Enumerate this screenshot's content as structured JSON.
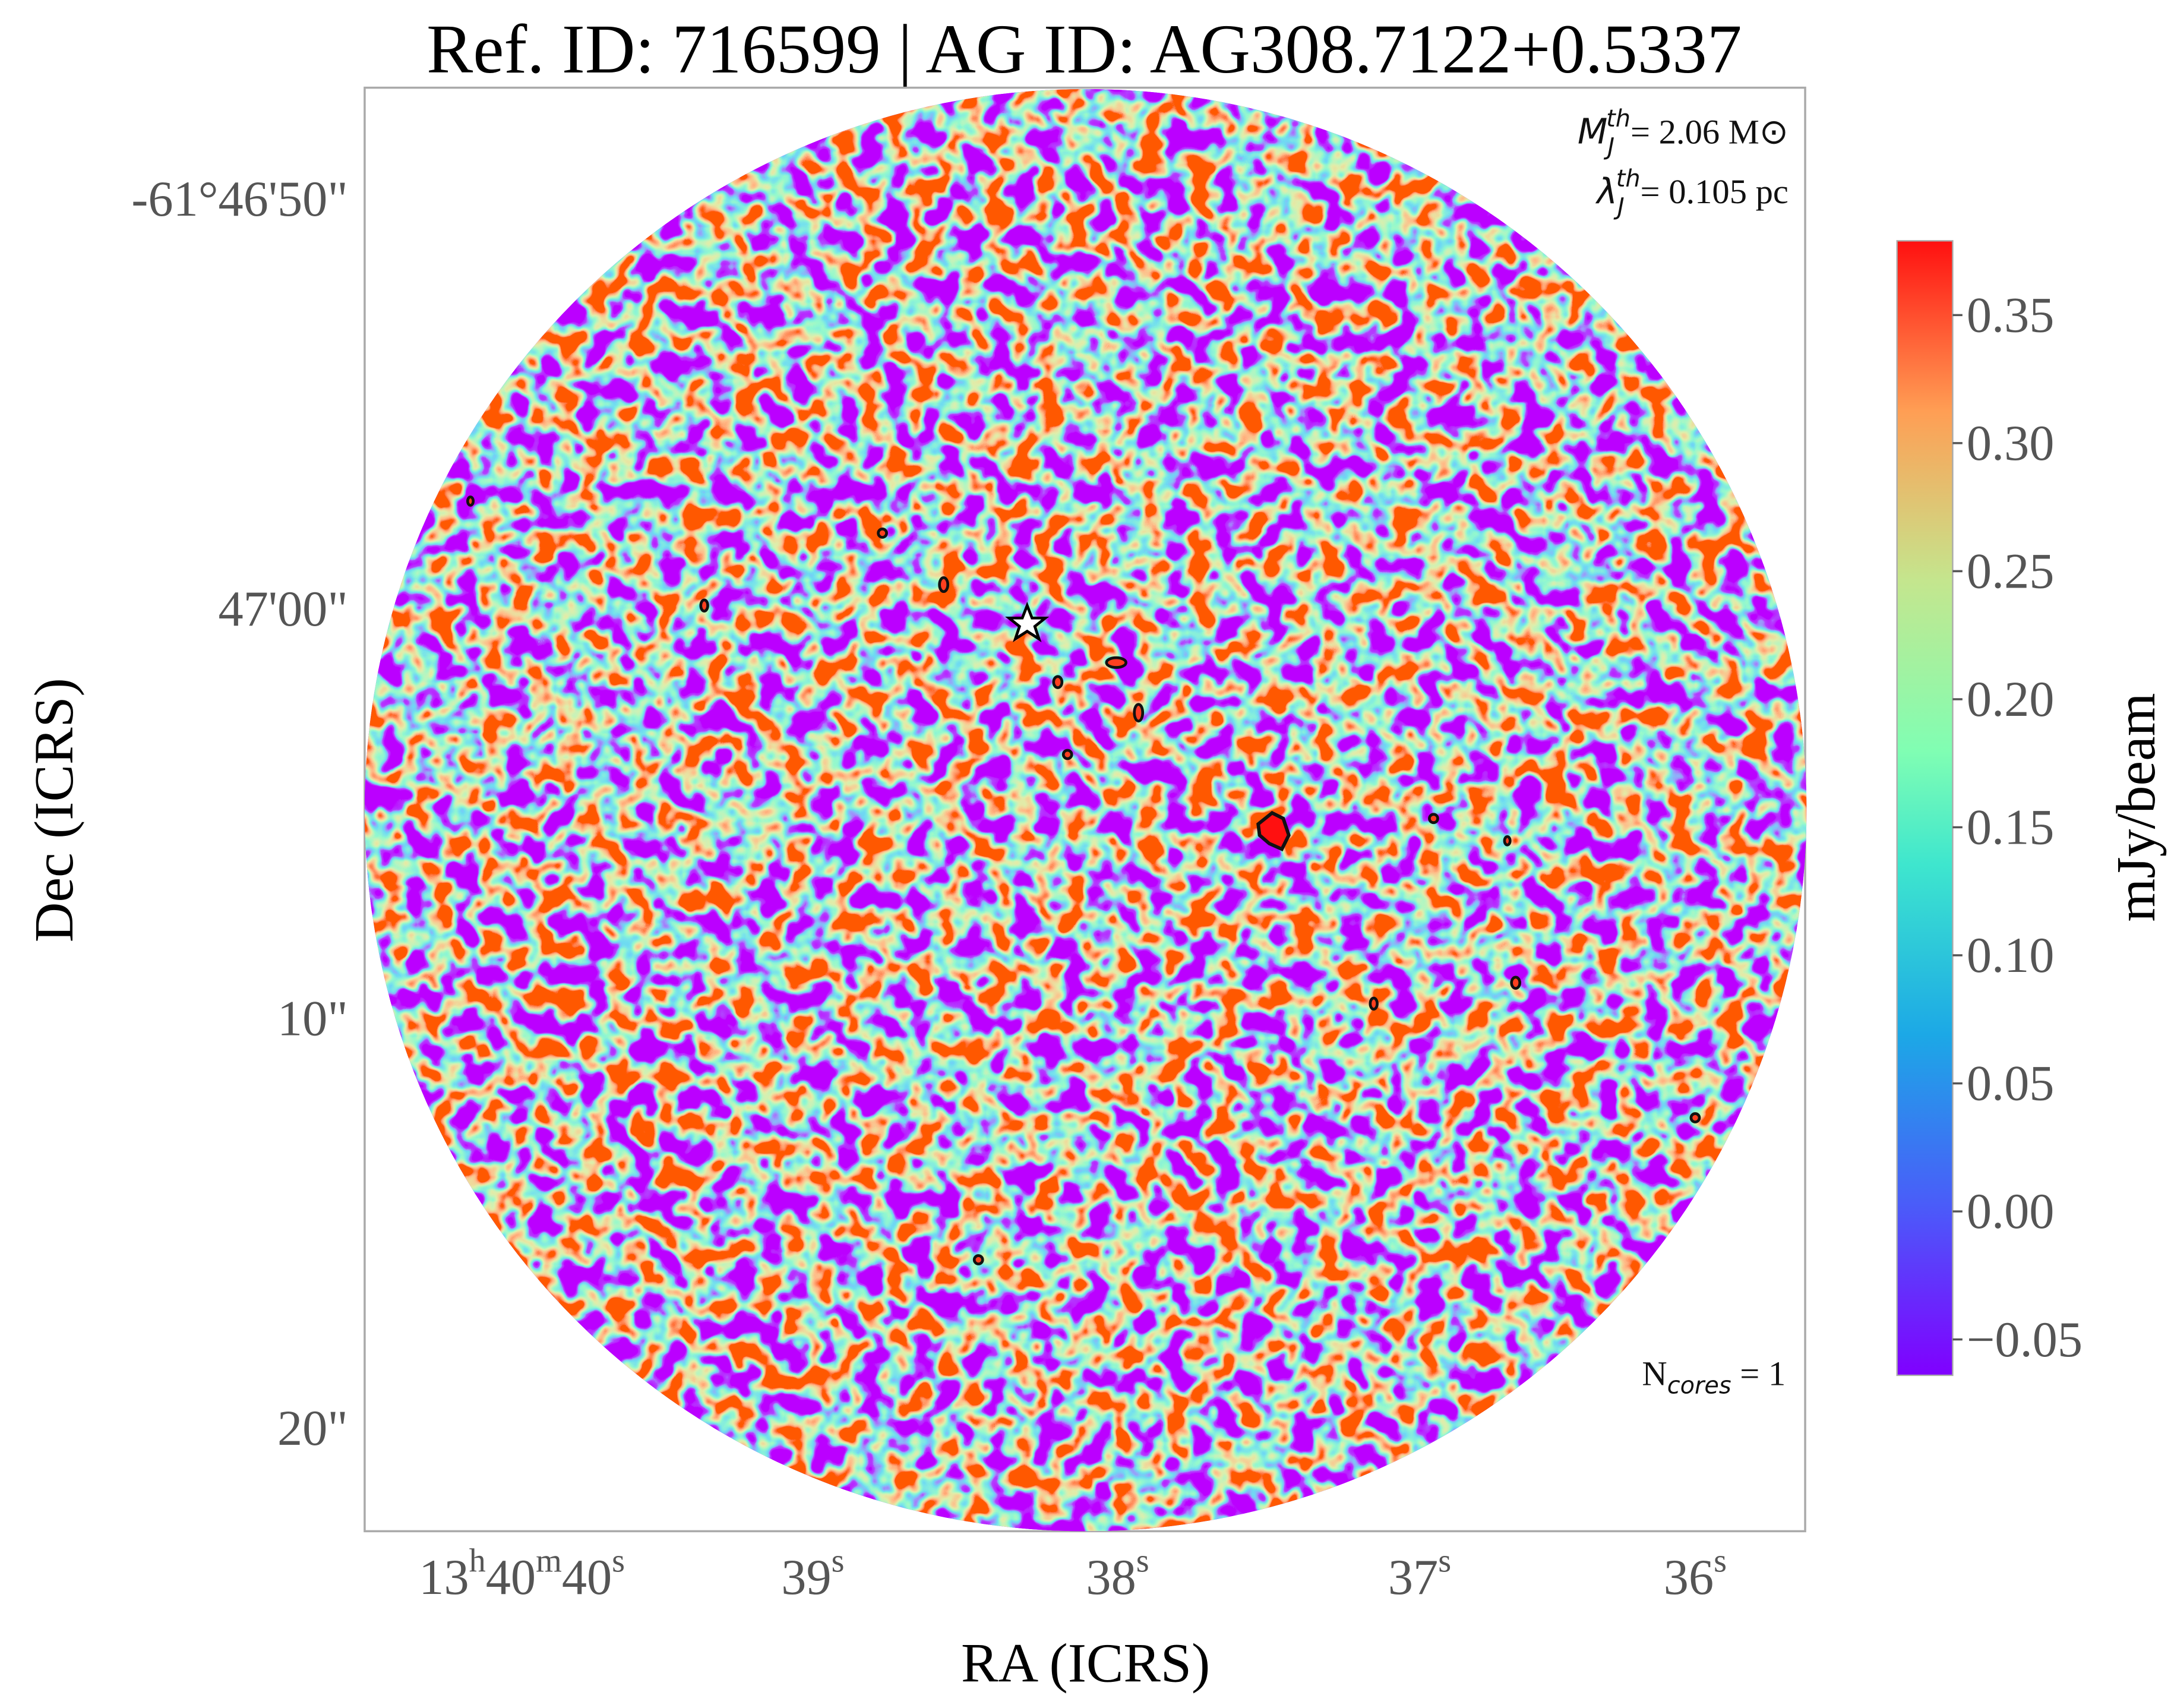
{
  "chart_data": {
    "type": "heatmap",
    "title": "Ref. ID: 716599 | AG ID: AG308.7122+0.5337",
    "xlabel": "RA (ICRS)",
    "ylabel": "Dec (ICRS)",
    "xtick_labels": [
      "13h40m40s",
      "39s",
      "38s",
      "37s",
      "36s"
    ],
    "ytick_labels": [
      "-61°46'50\"",
      "47'00\"",
      "10\"",
      "20\""
    ],
    "colorbar": {
      "label": "mJy/beam",
      "clim": [
        -0.064,
        0.379
      ],
      "ticks": [
        {
          "value": -0.05,
          "label": "−0.05"
        },
        {
          "value": 0,
          "label": "0.00"
        },
        {
          "value": 0.05,
          "label": "0.05"
        },
        {
          "value": 0.1,
          "label": "0.10"
        },
        {
          "value": 0.15,
          "label": "0.15"
        },
        {
          "value": 0.2,
          "label": "0.20"
        },
        {
          "value": 0.25,
          "label": "0.25"
        },
        {
          "value": 0.3,
          "label": "0.30"
        },
        {
          "value": 0.35,
          "label": "0.35"
        }
      ]
    },
    "annotations": {
      "mass": [
        "M",
        "J",
        "th",
        "= 2.06 M⊙"
      ],
      "length": [
        "λ",
        "J",
        "th",
        "= 0.105 pc"
      ],
      "cores": [
        "N",
        "cores",
        " = 1"
      ]
    }
  }
}
